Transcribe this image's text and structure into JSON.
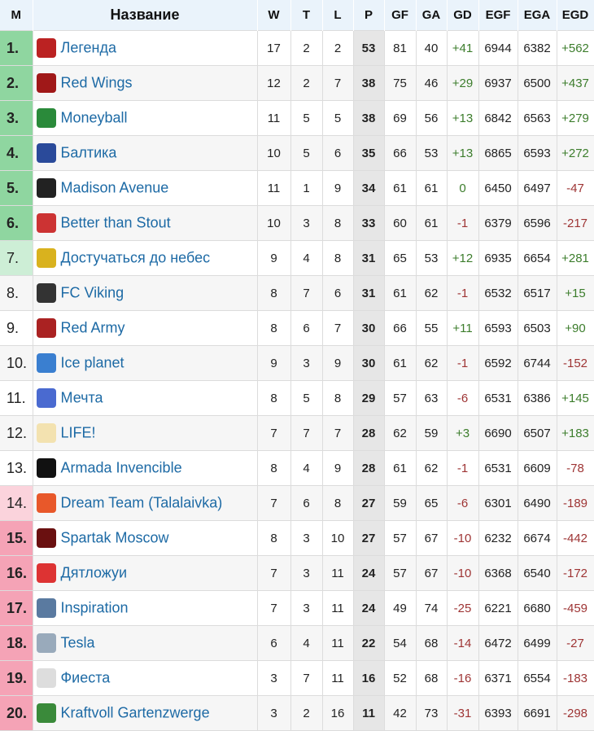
{
  "headers": [
    "M",
    "Название",
    "W",
    "T",
    "L",
    "P",
    "GF",
    "GA",
    "GD",
    "EGF",
    "EGA",
    "EGD"
  ],
  "colors": {
    "promotion": "#8fd6a0",
    "promotion_playoff": "#cdeed6",
    "relegation_playoff": "#fbd3dc",
    "relegation": "#f5a3b6",
    "positive": "#3c7d2c",
    "negative": "#9e3434",
    "link": "#1d6aa5"
  },
  "rows": [
    {
      "pos": "1.",
      "name": "Легенда",
      "logo": "#b22",
      "w": "17",
      "t": "2",
      "l": "2",
      "p": "53",
      "gf": "81",
      "ga": "40",
      "gd": "+41",
      "egf": "6944",
      "ega": "6382",
      "egd": "+562",
      "zone": "promotion"
    },
    {
      "pos": "2.",
      "name": "Red Wings",
      "logo": "#a01818",
      "w": "12",
      "t": "2",
      "l": "7",
      "p": "38",
      "gf": "75",
      "ga": "46",
      "gd": "+29",
      "egf": "6937",
      "ega": "6500",
      "egd": "+437",
      "zone": "promotion"
    },
    {
      "pos": "3.",
      "name": "Moneyball",
      "logo": "#2a8a3a",
      "w": "11",
      "t": "5",
      "l": "5",
      "p": "38",
      "gf": "69",
      "ga": "56",
      "gd": "+13",
      "egf": "6842",
      "ega": "6563",
      "egd": "+279",
      "zone": "promotion"
    },
    {
      "pos": "4.",
      "name": "Балтика",
      "logo": "#2a4a9a",
      "w": "10",
      "t": "5",
      "l": "6",
      "p": "35",
      "gf": "66",
      "ga": "53",
      "gd": "+13",
      "egf": "6865",
      "ega": "6593",
      "egd": "+272",
      "zone": "promotion"
    },
    {
      "pos": "5.",
      "name": "Madison Avenue",
      "logo": "#222",
      "w": "11",
      "t": "1",
      "l": "9",
      "p": "34",
      "gf": "61",
      "ga": "61",
      "gd": "0",
      "egf": "6450",
      "ega": "6497",
      "egd": "-47",
      "zone": "promotion"
    },
    {
      "pos": "6.",
      "name": "Better than Stout",
      "logo": "#c33",
      "w": "10",
      "t": "3",
      "l": "8",
      "p": "33",
      "gf": "60",
      "ga": "61",
      "gd": "-1",
      "egf": "6379",
      "ega": "6596",
      "egd": "-217",
      "zone": "promotion"
    },
    {
      "pos": "7.",
      "name": "Достучаться до небес",
      "logo": "#d9b21e",
      "w": "9",
      "t": "4",
      "l": "8",
      "p": "31",
      "gf": "65",
      "ga": "53",
      "gd": "+12",
      "egf": "6935",
      "ega": "6654",
      "egd": "+281",
      "zone": "promotion_playoff"
    },
    {
      "pos": "8.",
      "name": "FC Viking",
      "logo": "#333",
      "w": "8",
      "t": "7",
      "l": "6",
      "p": "31",
      "gf": "61",
      "ga": "62",
      "gd": "-1",
      "egf": "6532",
      "ega": "6517",
      "egd": "+15",
      "zone": ""
    },
    {
      "pos": "9.",
      "name": "Red Army",
      "logo": "#a22",
      "w": "8",
      "t": "6",
      "l": "7",
      "p": "30",
      "gf": "66",
      "ga": "55",
      "gd": "+11",
      "egf": "6593",
      "ega": "6503",
      "egd": "+90",
      "zone": ""
    },
    {
      "pos": "10.",
      "name": "Ice planet",
      "logo": "#3a7fd0",
      "w": "9",
      "t": "3",
      "l": "9",
      "p": "30",
      "gf": "61",
      "ga": "62",
      "gd": "-1",
      "egf": "6592",
      "ega": "6744",
      "egd": "-152",
      "zone": ""
    },
    {
      "pos": "11.",
      "name": "Мечта",
      "logo": "#4a6ad0",
      "w": "8",
      "t": "5",
      "l": "8",
      "p": "29",
      "gf": "57",
      "ga": "63",
      "gd": "-6",
      "egf": "6531",
      "ega": "6386",
      "egd": "+145",
      "zone": ""
    },
    {
      "pos": "12.",
      "name": "LIFE!",
      "logo": "#f3e2b0",
      "w": "7",
      "t": "7",
      "l": "7",
      "p": "28",
      "gf": "62",
      "ga": "59",
      "gd": "+3",
      "egf": "6690",
      "ega": "6507",
      "egd": "+183",
      "zone": ""
    },
    {
      "pos": "13.",
      "name": "Armada Invencible",
      "logo": "#111",
      "w": "8",
      "t": "4",
      "l": "9",
      "p": "28",
      "gf": "61",
      "ga": "62",
      "gd": "-1",
      "egf": "6531",
      "ega": "6609",
      "egd": "-78",
      "zone": ""
    },
    {
      "pos": "14.",
      "name": "Dream Team (Talalaivka)",
      "logo": "#e8582a",
      "w": "7",
      "t": "6",
      "l": "8",
      "p": "27",
      "gf": "59",
      "ga": "65",
      "gd": "-6",
      "egf": "6301",
      "ega": "6490",
      "egd": "-189",
      "zone": "relegation_playoff"
    },
    {
      "pos": "15.",
      "name": "Spartak Moscow",
      "logo": "#6a1010",
      "w": "8",
      "t": "3",
      "l": "10",
      "p": "27",
      "gf": "57",
      "ga": "67",
      "gd": "-10",
      "egf": "6232",
      "ega": "6674",
      "egd": "-442",
      "zone": "relegation"
    },
    {
      "pos": "16.",
      "name": "Дятложуи",
      "logo": "#d33",
      "w": "7",
      "t": "3",
      "l": "11",
      "p": "24",
      "gf": "57",
      "ga": "67",
      "gd": "-10",
      "egf": "6368",
      "ega": "6540",
      "egd": "-172",
      "zone": "relegation"
    },
    {
      "pos": "17.",
      "name": "Inspiration",
      "logo": "#5a7aa0",
      "w": "7",
      "t": "3",
      "l": "11",
      "p": "24",
      "gf": "49",
      "ga": "74",
      "gd": "-25",
      "egf": "6221",
      "ega": "6680",
      "egd": "-459",
      "zone": "relegation"
    },
    {
      "pos": "18.",
      "name": "Tesla",
      "logo": "#9ab",
      "w": "6",
      "t": "4",
      "l": "11",
      "p": "22",
      "gf": "54",
      "ga": "68",
      "gd": "-14",
      "egf": "6472",
      "ega": "6499",
      "egd": "-27",
      "zone": "relegation"
    },
    {
      "pos": "19.",
      "name": "Фиеста",
      "logo": "#ddd",
      "w": "3",
      "t": "7",
      "l": "11",
      "p": "16",
      "gf": "52",
      "ga": "68",
      "gd": "-16",
      "egf": "6371",
      "ega": "6554",
      "egd": "-183",
      "zone": "relegation"
    },
    {
      "pos": "20.",
      "name": "Kraftvoll Gartenzwerge",
      "logo": "#3a8a3a",
      "w": "3",
      "t": "2",
      "l": "16",
      "p": "11",
      "gf": "42",
      "ga": "73",
      "gd": "-31",
      "egf": "6393",
      "ega": "6691",
      "egd": "-298",
      "zone": "relegation"
    }
  ]
}
